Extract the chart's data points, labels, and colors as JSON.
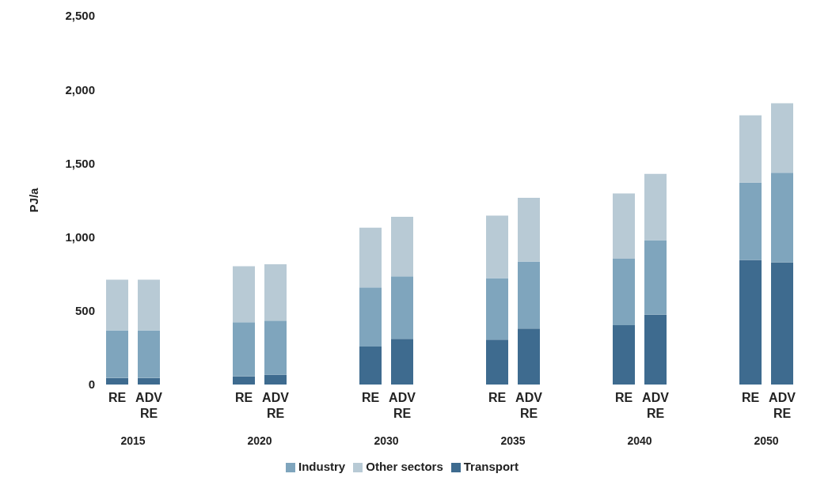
{
  "chart_data": {
    "type": "bar",
    "stacked": true,
    "ylabel": "PJ/a",
    "categories": [
      "RE",
      "ADV RE",
      "RE",
      "ADV RE",
      "RE",
      "ADV RE",
      "RE",
      "ADV RE",
      "RE",
      "ADV RE",
      "RE",
      "ADV RE"
    ],
    "annotations": [
      "2015",
      "2020",
      "2030",
      "2035",
      "2040",
      "2050"
    ],
    "series": [
      {
        "name": "Transport",
        "color": "#3e6b8f",
        "values": [
          45,
          45,
          56,
          67,
          258,
          310,
          305,
          380,
          402,
          473,
          845,
          829
        ]
      },
      {
        "name": "Industry",
        "color": "#7fa5bd",
        "values": [
          323,
          323,
          366,
          366,
          401,
          424,
          416,
          454,
          451,
          506,
          525,
          607
        ]
      },
      {
        "name": "Other sectors",
        "color": "#b8cad5",
        "values": [
          343,
          343,
          380,
          382,
          405,
          404,
          424,
          432,
          443,
          449,
          455,
          471
        ]
      }
    ],
    "ylim": [
      0,
      2500
    ],
    "yticks": [
      {
        "value": 0,
        "label": "0"
      },
      {
        "value": 500,
        "label": "500"
      },
      {
        "value": 1000,
        "label": "1,000"
      },
      {
        "value": 1500,
        "label": "1,500"
      },
      {
        "value": 2000,
        "label": "2,000"
      },
      {
        "value": 2500,
        "label": "2,500"
      }
    ],
    "grid": false,
    "legend": "bottom"
  }
}
